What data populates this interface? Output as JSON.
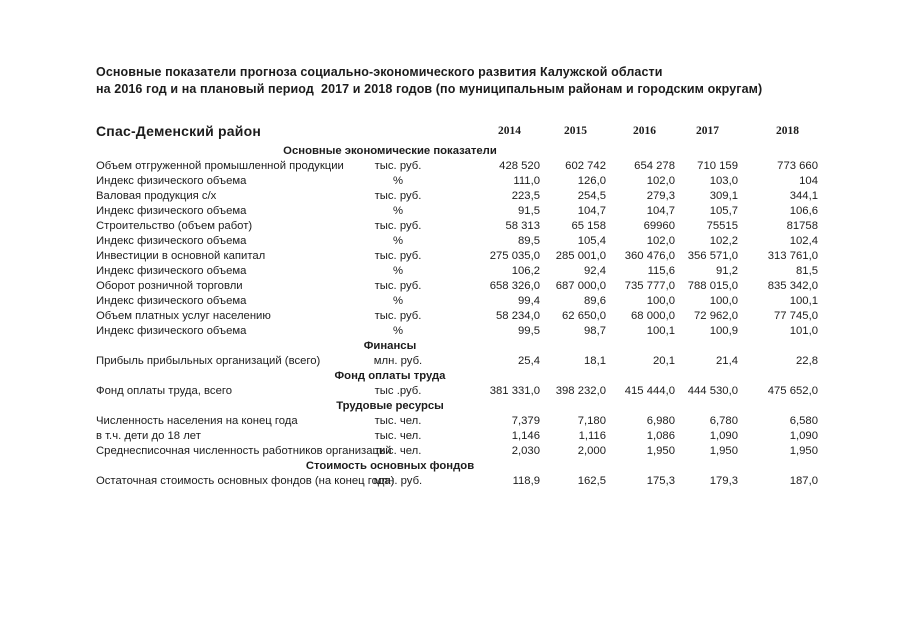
{
  "document": {
    "title_line1": "Основные показатели прогноза социально-экономического развития Калужской области",
    "title_line2": "на 2016 год и на плановый период  2017 и 2018 годов (по муниципальным районам и городским округам)"
  },
  "table": {
    "district": "Спас-Деменский район",
    "years": [
      "2014",
      "2015",
      "2016",
      "2017",
      "2018"
    ],
    "rows": [
      {
        "type": "section",
        "label": "Основные экономические показатели"
      },
      {
        "type": "data",
        "label": "Объем отгруженной промышленной продукции",
        "unit": "тыс. руб.",
        "values": [
          "428 520",
          "602 742",
          "654 278",
          "710 159",
          "773 660"
        ]
      },
      {
        "type": "data",
        "label": "Индекс физического объема",
        "unit": "%",
        "values": [
          "111,0",
          "126,0",
          "102,0",
          "103,0",
          "104"
        ]
      },
      {
        "type": "data",
        "label": "Валовая продукция с/х",
        "unit": "тыс. руб.",
        "values": [
          "223,5",
          "254,5",
          "279,3",
          "309,1",
          "344,1"
        ]
      },
      {
        "type": "data",
        "label": "Индекс физического объема",
        "unit": "%",
        "values": [
          "91,5",
          "104,7",
          "104,7",
          "105,7",
          "106,6"
        ]
      },
      {
        "type": "data",
        "label": "Строительство (объем работ)",
        "unit": "тыс. руб.",
        "values": [
          "58 313",
          "65 158",
          "69960",
          "75515",
          "81758"
        ]
      },
      {
        "type": "data",
        "label": "Индекс физического объема",
        "unit": "%",
        "values": [
          "89,5",
          "105,4",
          "102,0",
          "102,2",
          "102,4"
        ]
      },
      {
        "type": "data",
        "label": "Инвестиции в основной капитал",
        "unit": "тыс. руб.",
        "values": [
          "275 035,0",
          "285 001,0",
          "360 476,0",
          "356 571,0",
          "313 761,0"
        ]
      },
      {
        "type": "data",
        "label": "Индекс физического объема",
        "unit": "%",
        "values": [
          "106,2",
          "92,4",
          "115,6",
          "91,2",
          "81,5"
        ]
      },
      {
        "type": "data",
        "label": "Оборот розничной торговли",
        "unit": "тыс. руб.",
        "values": [
          "658 326,0",
          "687 000,0",
          "735 777,0",
          "788 015,0",
          "835 342,0"
        ]
      },
      {
        "type": "data",
        "label": "Индекс физического объема",
        "unit": "%",
        "values": [
          "99,4",
          "89,6",
          "100,0",
          "100,0",
          "100,1"
        ]
      },
      {
        "type": "data",
        "label": "Объем платных услуг населению",
        "unit": "тыс. руб.",
        "values": [
          "58 234,0",
          "62 650,0",
          "68 000,0",
          "72 962,0",
          "77 745,0"
        ]
      },
      {
        "type": "data",
        "label": "Индекс физического объема",
        "unit": "%",
        "values": [
          "99,5",
          "98,7",
          "100,1",
          "100,9",
          "101,0"
        ]
      },
      {
        "type": "section",
        "label": "Финансы"
      },
      {
        "type": "data",
        "label": "Прибыль прибыльных организаций (всего)",
        "unit": "млн. руб.",
        "values": [
          "25,4",
          "18,1",
          "20,1",
          "21,4",
          "22,8"
        ]
      },
      {
        "type": "section",
        "label": "Фонд оплаты труда"
      },
      {
        "type": "data",
        "label": "Фонд оплаты труда, всего",
        "unit": "тыс .руб.",
        "values": [
          "381 331,0",
          "398 232,0",
          "415 444,0",
          "444 530,0",
          "475 652,0"
        ]
      },
      {
        "type": "section",
        "label": "Трудовые ресурсы"
      },
      {
        "type": "data",
        "label": "Численность населения на конец года",
        "unit": "тыс. чел.",
        "values": [
          "7,379",
          "7,180",
          "6,980",
          "6,780",
          "6,580"
        ]
      },
      {
        "type": "data",
        "label": "в т.ч. дети до 18 лет",
        "unit": "тыс. чел.",
        "values": [
          "1,146",
          "1,116",
          "1,086",
          "1,090",
          "1,090"
        ]
      },
      {
        "type": "data",
        "label": "Среднесписочная численность работников организаций",
        "unit": "тыс. чел.",
        "values": [
          "2,030",
          "2,000",
          "1,950",
          "1,950",
          "1,950"
        ]
      },
      {
        "type": "section",
        "label": "Стоимость основных фондов"
      },
      {
        "type": "data",
        "label": "Остаточная стоимость основных фондов (на конец года)",
        "unit": "млн. руб.",
        "values": [
          "118,9",
          "162,5",
          "175,3",
          "179,3",
          "187,0"
        ]
      }
    ]
  }
}
